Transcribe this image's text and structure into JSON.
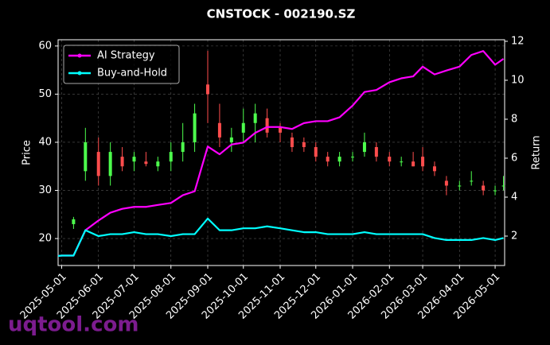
{
  "chart_data": {
    "type": "candlestick",
    "title": "CNSTOCK - 002190.SZ",
    "watermark": "uqtool.com",
    "ylabel": "Price",
    "y2label": "Return",
    "x": [
      "2025-04-28",
      "2025-05-01",
      "2025-05-11",
      "2025-05-21",
      "2025-06-01",
      "2025-06-11",
      "2025-06-21",
      "2025-07-01",
      "2025-07-11",
      "2025-07-21",
      "2025-08-01",
      "2025-08-11",
      "2025-08-21",
      "2025-09-01",
      "2025-09-11",
      "2025-09-21",
      "2025-10-01",
      "2025-10-11",
      "2025-10-21",
      "2025-11-01",
      "2025-11-11",
      "2025-11-21",
      "2025-12-01",
      "2025-12-11",
      "2025-12-21",
      "2026-01-01",
      "2026-01-11",
      "2026-01-21",
      "2026-02-01",
      "2026-02-11",
      "2026-02-21",
      "2026-03-01",
      "2026-03-11",
      "2026-03-21",
      "2026-04-01",
      "2026-04-11",
      "2026-04-21",
      "2026-05-01",
      "2026-05-08"
    ],
    "candles": {
      "up_color": "#4dff4d",
      "down_color": "#ff4d4d",
      "open": [
        null,
        null,
        23,
        34,
        38,
        33,
        37,
        36,
        36,
        35,
        36,
        38,
        40,
        52,
        44,
        40,
        42,
        44,
        45,
        43,
        41,
        40,
        39,
        37,
        36,
        37,
        38,
        39,
        37,
        36,
        36,
        37,
        35,
        32,
        31,
        32,
        31,
        30,
        31
      ],
      "high": [
        null,
        null,
        24.5,
        43,
        41,
        40,
        39,
        38,
        38,
        37,
        40,
        44,
        48,
        59,
        48,
        43,
        47,
        48,
        47,
        44,
        42,
        41,
        40,
        38,
        38,
        38,
        42,
        40,
        38,
        37,
        38,
        39,
        36,
        33,
        32,
        34,
        32,
        31,
        33
      ],
      "low": [
        null,
        null,
        22,
        32,
        31,
        31,
        34,
        34,
        35,
        34,
        34,
        36,
        38,
        44,
        39,
        38,
        40,
        40,
        41,
        40,
        38,
        38,
        36,
        35,
        35,
        36,
        37,
        36,
        35,
        35,
        35,
        34,
        33,
        29,
        30,
        31,
        29,
        29,
        30
      ],
      "close": [
        null,
        null,
        24,
        40,
        33,
        38,
        35,
        37,
        35.5,
        36,
        38,
        40,
        46,
        50,
        41,
        41,
        44,
        46,
        42,
        42,
        39,
        39,
        37,
        36,
        37,
        37,
        40,
        37,
        36,
        36,
        35,
        35,
        34,
        31,
        31,
        32,
        30,
        30,
        31
      ]
    },
    "series": [
      {
        "name": "AI Strategy",
        "color": "#ff00ff",
        "axis": "y2",
        "values": [
          0.98,
          1.0,
          1.0,
          2.3,
          2.8,
          3.2,
          3.4,
          3.5,
          3.5,
          3.6,
          3.7,
          4.1,
          4.3,
          6.6,
          6.2,
          6.7,
          6.8,
          7.3,
          7.6,
          7.6,
          7.5,
          7.8,
          7.9,
          7.9,
          8.1,
          8.7,
          9.4,
          9.5,
          9.9,
          10.1,
          10.2,
          10.7,
          10.3,
          10.5,
          10.7,
          11.3,
          11.5,
          10.8,
          11.1
        ]
      },
      {
        "name": "Buy-and-Hold",
        "color": "#00ffff",
        "axis": "y2",
        "values": [
          0.98,
          1.0,
          1.0,
          2.3,
          2.0,
          2.1,
          2.1,
          2.2,
          2.1,
          2.1,
          2.0,
          2.1,
          2.1,
          2.9,
          2.3,
          2.3,
          2.4,
          2.4,
          2.5,
          2.4,
          2.3,
          2.2,
          2.2,
          2.1,
          2.1,
          2.1,
          2.2,
          2.1,
          2.1,
          2.1,
          2.1,
          2.1,
          1.9,
          1.8,
          1.8,
          1.8,
          1.9,
          1.8,
          1.9
        ]
      }
    ],
    "xlim": [
      "2025-04-28",
      "2026-05-09"
    ],
    "xticks": [
      "2025-05-01",
      "2025-06-01",
      "2025-07-01",
      "2025-08-01",
      "2025-09-01",
      "2025-10-01",
      "2025-11-01",
      "2025-12-01",
      "2026-01-01",
      "2026-02-01",
      "2026-03-01",
      "2026-04-01",
      "2026-05-01"
    ],
    "ylim": [
      14.4,
      61.3
    ],
    "yticks": [
      20,
      30,
      40,
      50,
      60
    ],
    "y2lim": [
      0.49,
      12.08
    ],
    "y2ticks": [
      2,
      4,
      6,
      8,
      10,
      12
    ],
    "grid": true,
    "legend": "upper-left"
  }
}
